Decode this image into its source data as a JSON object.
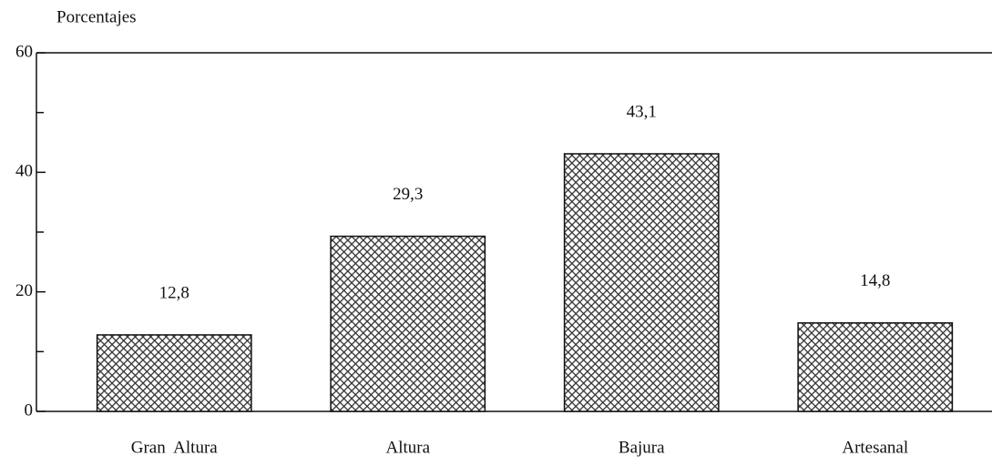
{
  "chart_data": {
    "type": "bar",
    "y_label": "Porcentajes",
    "categories": [
      "Gran  Altura",
      "Altura",
      "Bajura",
      "Artesanal"
    ],
    "values": [
      12.8,
      29.3,
      43.1,
      14.8
    ],
    "value_labels": [
      "12,8",
      "29,3",
      "43,1",
      "14,8"
    ],
    "color": "#333333",
    "ylim": [
      0,
      60
    ],
    "yticks": [
      0,
      20,
      40,
      60
    ],
    "minor_yticks": [
      10,
      30,
      50
    ],
    "grid": false
  }
}
